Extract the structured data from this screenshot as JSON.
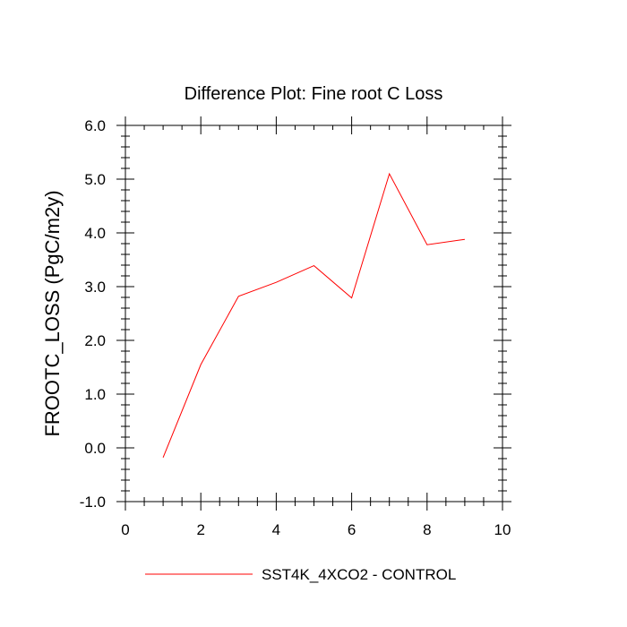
{
  "chart_data": {
    "type": "line",
    "title": "Difference Plot: Fine root C Loss",
    "xlabel": "",
    "ylabel": "FROOTC_LOSS  (PgC/m2y)",
    "xlim": [
      0,
      10
    ],
    "ylim": [
      -1.0,
      6.0
    ],
    "x_ticks": [
      0,
      2,
      4,
      6,
      8,
      10
    ],
    "y_ticks": [
      -1.0,
      0.0,
      1.0,
      2.0,
      3.0,
      4.0,
      5.0,
      6.0
    ],
    "x_tick_labels": [
      "0",
      "2",
      "4",
      "6",
      "8",
      "10"
    ],
    "y_tick_labels": [
      "-1.0",
      "0.0",
      "1.0",
      "2.0",
      "3.0",
      "4.0",
      "5.0",
      "6.0"
    ],
    "grid": false,
    "legend_position": "bottom",
    "series": [
      {
        "name": "SST4K_4XCO2 - CONTROL",
        "color": "#ff0000",
        "x": [
          1,
          2,
          3,
          4,
          5,
          6,
          7,
          8,
          9
        ],
        "values": [
          -0.18,
          1.55,
          2.82,
          3.08,
          3.39,
          2.79,
          5.1,
          3.78,
          3.88
        ]
      }
    ]
  }
}
